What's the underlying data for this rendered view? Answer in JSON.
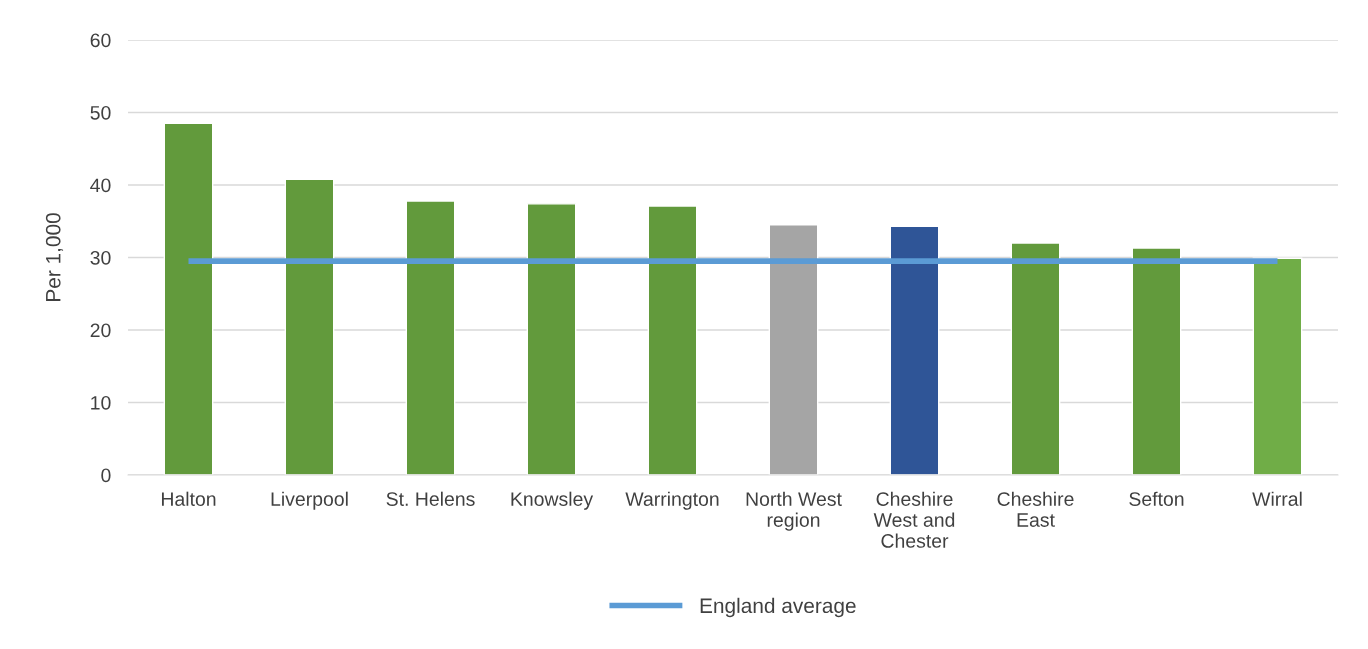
{
  "chart_data": {
    "type": "bar",
    "ylabel": "Per 1,000",
    "categories": [
      "Halton",
      "Liverpool",
      "St. Helens",
      "Knowsley",
      "Warrington",
      "North West\nregion",
      "Cheshire\nWest and\nChester",
      "Cheshire\nEast",
      "Sefton",
      "Wirral"
    ],
    "series": [
      {
        "values": [
          48.5,
          40.8,
          37.8,
          37.4,
          37.1,
          34.5,
          34.3,
          32.0,
          31.3,
          29.9
        ],
        "colors": [
          "#629a3c",
          "#629a3c",
          "#629a3c",
          "#629a3c",
          "#629a3c",
          "#a5a5a5",
          "#2f5597",
          "#629a3c",
          "#629a3c",
          "#70ad47"
        ]
      },
      {
        "type": "line",
        "name": "England average",
        "color": "#5b9bd5",
        "values": [
          29.5,
          29.5,
          29.5,
          29.5,
          29.5,
          29.5,
          29.5,
          29.5,
          29.5,
          29.5
        ]
      }
    ],
    "ylim": [
      0,
      60
    ],
    "yticks": [
      0,
      10,
      20,
      30,
      40,
      50,
      60
    ],
    "grid": "y",
    "legend": "bottom"
  }
}
